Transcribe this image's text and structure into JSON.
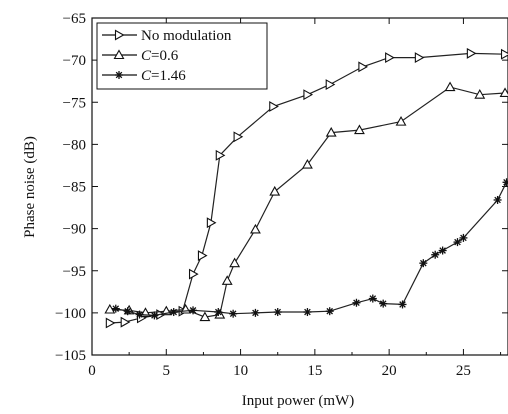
{
  "chart_data": {
    "type": "line",
    "title": "",
    "xlabel": "Input power (mW)",
    "ylabel": "Phase noise (dB)",
    "xlim": [
      0,
      28
    ],
    "ylim": [
      -105,
      -65
    ],
    "xticks": [
      0,
      5,
      10,
      15,
      20,
      25
    ],
    "yticks": [
      -105,
      -100,
      -95,
      -90,
      -85,
      -80,
      -75,
      -70,
      -65
    ],
    "xtick_labels": [
      "0",
      "5",
      "10",
      "15",
      "20",
      "25"
    ],
    "ytick_labels": [
      "−105",
      "−100",
      "−95",
      "−90",
      "−85",
      "−80",
      "−75",
      "−70",
      "−65"
    ],
    "grid": false,
    "legend_position": "top-left",
    "series": [
      {
        "name": "No modulation",
        "legend_parts": [
          {
            "text": "No modulation",
            "italic": false
          }
        ],
        "marker": "triangle-right",
        "color": "#222222",
        "points": [
          [
            1.2,
            -101.2
          ],
          [
            2.2,
            -101.1
          ],
          [
            3.3,
            -100.6
          ],
          [
            4.6,
            -100.2
          ],
          [
            6.1,
            -99.8
          ],
          [
            6.8,
            -95.4
          ],
          [
            7.4,
            -93.2
          ],
          [
            8.0,
            -89.3
          ],
          [
            8.6,
            -81.3
          ],
          [
            9.8,
            -79.1
          ],
          [
            12.2,
            -75.5
          ],
          [
            14.5,
            -74.1
          ],
          [
            16.0,
            -72.9
          ],
          [
            18.2,
            -70.8
          ],
          [
            20.0,
            -69.7
          ],
          [
            22.0,
            -69.7
          ],
          [
            25.5,
            -69.2
          ],
          [
            27.8,
            -69.3
          ]
        ]
      },
      {
        "name": "C=0.6",
        "legend_parts": [
          {
            "text": "C",
            "italic": true
          },
          {
            "text": "=0.6",
            "italic": false
          }
        ],
        "marker": "triangle-up",
        "color": "#222222",
        "points": [
          [
            1.2,
            -99.6
          ],
          [
            2.5,
            -99.7
          ],
          [
            3.6,
            -100.0
          ],
          [
            5.0,
            -99.8
          ],
          [
            6.3,
            -99.6
          ],
          [
            7.6,
            -100.5
          ],
          [
            8.6,
            -100.2
          ],
          [
            9.1,
            -96.2
          ],
          [
            9.6,
            -94.1
          ],
          [
            11.0,
            -90.1
          ],
          [
            12.3,
            -85.6
          ],
          [
            14.5,
            -82.4
          ],
          [
            16.1,
            -78.6
          ],
          [
            18.0,
            -78.3
          ],
          [
            20.8,
            -77.3
          ],
          [
            24.1,
            -73.2
          ],
          [
            26.1,
            -74.1
          ],
          [
            27.8,
            -73.9
          ]
        ]
      },
      {
        "name": "C=1.46",
        "legend_parts": [
          {
            "text": "C",
            "italic": true
          },
          {
            "text": "=1.46",
            "italic": false
          }
        ],
        "marker": "star",
        "color": "#222222",
        "points": [
          [
            1.6,
            -99.5
          ],
          [
            2.4,
            -99.8
          ],
          [
            3.2,
            -100.2
          ],
          [
            4.2,
            -100.3
          ],
          [
            5.5,
            -99.9
          ],
          [
            6.8,
            -99.7
          ],
          [
            8.5,
            -99.9
          ],
          [
            9.5,
            -100.1
          ],
          [
            11.0,
            -100.0
          ],
          [
            12.5,
            -99.9
          ],
          [
            14.5,
            -99.9
          ],
          [
            16.0,
            -99.8
          ],
          [
            17.8,
            -98.8
          ],
          [
            18.9,
            -98.3
          ],
          [
            19.6,
            -98.9
          ],
          [
            20.9,
            -99.0
          ],
          [
            22.3,
            -94.1
          ],
          [
            23.1,
            -93.1
          ],
          [
            23.6,
            -92.6
          ],
          [
            24.6,
            -91.6
          ],
          [
            25.0,
            -91.1
          ],
          [
            27.3,
            -86.6
          ],
          [
            27.9,
            -84.5
          ]
        ]
      }
    ]
  }
}
